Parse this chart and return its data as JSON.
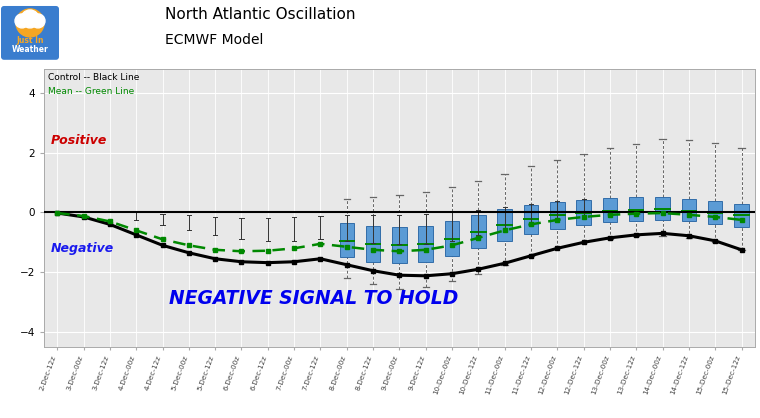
{
  "title1": "North Atlantic Oscillation",
  "title2": "ECMWF Model",
  "legend_line1": "Control -- Black Line",
  "legend_line2": "Mean -- Green Line",
  "positive_label": "Positive",
  "negative_label": "Negative",
  "annotation": "NEGATIVE SIGNAL TO HOLD",
  "annotation_color": "#0000ee",
  "positive_color": "#cc0000",
  "negative_color": "#1a1aee",
  "control_color": "#000000",
  "mean_color": "#008800",
  "box_color": "#5b9bd5",
  "box_edge_color": "#2060a0",
  "whisker_color": "#666666",
  "ylim": [
    -4.5,
    4.8
  ],
  "yticks": [
    -4,
    -2,
    0,
    2,
    4
  ],
  "background_color": "#e8e8e8",
  "x_labels": [
    "2-Dec-12z",
    "3-Dec-00z",
    "3-Dec-12z",
    "4-Dec-00z",
    "4-Dec-12z",
    "5-Dec-00z",
    "5-Dec-12z",
    "6-Dec-00z",
    "6-Dec-12z",
    "7-Dec-00z",
    "7-Dec-12z",
    "8-Dec-00z",
    "8-Dec-12z",
    "9-Dec-00z",
    "9-Dec-12z",
    "10-Dec-00z",
    "10-Dec-12z",
    "11-Dec-00z",
    "11-Dec-12z",
    "12-Dec-00z",
    "12-Dec-12z",
    "13-Dec-00z",
    "13-Dec-12z",
    "14-Dec-00z",
    "14-Dec-12z",
    "15-Dec-00z",
    "15-Dec-12z"
  ],
  "control_line": [
    -0.02,
    -0.15,
    -0.4,
    -0.75,
    -1.1,
    -1.35,
    -1.55,
    -1.65,
    -1.68,
    -1.65,
    -1.55,
    -1.75,
    -1.95,
    -2.1,
    -2.12,
    -2.05,
    -1.9,
    -1.7,
    -1.45,
    -1.2,
    -1.0,
    -0.85,
    -0.75,
    -0.7,
    -0.78,
    -0.95,
    -1.25
  ],
  "mean_line": [
    -0.02,
    -0.12,
    -0.3,
    -0.6,
    -0.9,
    -1.1,
    -1.25,
    -1.3,
    -1.28,
    -1.2,
    -1.05,
    -1.15,
    -1.25,
    -1.3,
    -1.25,
    -1.1,
    -0.85,
    -0.6,
    -0.4,
    -0.25,
    -0.15,
    -0.08,
    -0.04,
    -0.02,
    -0.08,
    -0.15,
    -0.25
  ],
  "box_q1": [
    null,
    null,
    null,
    null,
    null,
    null,
    null,
    null,
    null,
    null,
    null,
    -1.5,
    -1.65,
    -1.7,
    -1.65,
    -1.45,
    -1.2,
    -0.95,
    -0.72,
    -0.55,
    -0.42,
    -0.32,
    -0.28,
    -0.25,
    -0.3,
    -0.38,
    -0.48
  ],
  "box_q3": [
    null,
    null,
    null,
    null,
    null,
    null,
    null,
    null,
    null,
    null,
    null,
    -0.35,
    -0.45,
    -0.5,
    -0.45,
    -0.3,
    -0.1,
    0.1,
    0.25,
    0.35,
    0.42,
    0.48,
    0.5,
    0.52,
    0.45,
    0.38,
    0.28
  ],
  "box_medians": [
    null,
    null,
    null,
    null,
    null,
    null,
    null,
    null,
    null,
    null,
    null,
    -0.95,
    -1.05,
    -1.1,
    -1.05,
    -0.88,
    -0.65,
    -0.42,
    -0.22,
    -0.1,
    -0.02,
    0.05,
    0.08,
    0.1,
    0.05,
    -0.02,
    -0.1
  ],
  "box_whisker_low": [
    null,
    null,
    null,
    null,
    null,
    null,
    null,
    null,
    null,
    null,
    null,
    -2.2,
    -2.4,
    -2.55,
    -2.5,
    -2.3,
    -2.05,
    -1.75,
    -1.45,
    -1.2,
    -1.0,
    -0.88,
    -0.8,
    -0.78,
    -0.85,
    -1.0,
    -1.25
  ],
  "box_whisker_high": [
    null,
    null,
    null,
    null,
    null,
    null,
    null,
    null,
    null,
    null,
    null,
    0.45,
    0.5,
    0.6,
    0.7,
    0.85,
    1.05,
    1.3,
    1.55,
    1.75,
    1.95,
    2.15,
    2.3,
    2.45,
    2.42,
    2.32,
    2.15
  ],
  "small_box_indices": [
    10,
    11,
    12,
    13,
    14,
    15,
    16,
    17,
    18,
    19,
    20,
    21,
    22,
    23,
    24,
    25,
    26
  ],
  "early_error_indices": [
    3,
    4,
    5,
    6,
    7,
    8,
    9,
    10,
    11,
    12,
    13,
    14,
    15,
    16,
    17,
    18,
    19,
    20
  ],
  "early_error_low": [
    -0.25,
    -0.42,
    -0.6,
    -0.75,
    -0.88,
    -0.95,
    -0.95,
    -0.9,
    -0.95,
    -1.02,
    -1.05,
    -1.05,
    -0.95,
    -0.75,
    -0.55,
    -0.4,
    -0.3,
    -0.2
  ],
  "early_error_high": [
    0.0,
    -0.05,
    -0.1,
    -0.15,
    -0.18,
    -0.18,
    -0.15,
    -0.12,
    -0.08,
    -0.08,
    -0.08,
    -0.05,
    0.0,
    0.08,
    0.18,
    0.28,
    0.38,
    0.45
  ]
}
